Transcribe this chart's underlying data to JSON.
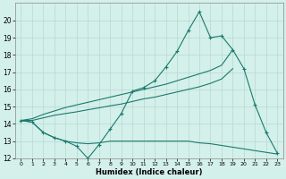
{
  "xlabel": "Humidex (Indice chaleur)",
  "x": [
    0,
    1,
    2,
    3,
    4,
    5,
    6,
    7,
    8,
    9,
    10,
    11,
    12,
    13,
    14,
    15,
    16,
    17,
    18,
    19,
    20,
    21,
    22,
    23
  ],
  "line_main": [
    14.2,
    14.1,
    13.5,
    13.2,
    13.0,
    12.7,
    12.0,
    12.8,
    13.7,
    14.6,
    15.9,
    16.1,
    16.5,
    17.3,
    18.2,
    19.4,
    20.5,
    19.0,
    19.1,
    18.3,
    17.2,
    15.1,
    13.5,
    12.3
  ],
  "line_upper": [
    14.2,
    14.3,
    14.55,
    14.75,
    14.95,
    15.1,
    15.25,
    15.4,
    15.55,
    15.7,
    15.85,
    16.0,
    16.15,
    16.3,
    16.5,
    16.7,
    16.9,
    17.1,
    17.4,
    18.3,
    null,
    null,
    null,
    null
  ],
  "line_mid": [
    14.2,
    14.2,
    14.35,
    14.5,
    14.6,
    14.7,
    14.82,
    14.93,
    15.05,
    15.15,
    15.3,
    15.45,
    15.55,
    15.7,
    15.85,
    16.0,
    16.15,
    16.35,
    16.6,
    17.2,
    null,
    null,
    null,
    null
  ],
  "line_lower": [
    14.2,
    14.1,
    13.5,
    13.2,
    13.0,
    12.9,
    12.85,
    12.9,
    13.0,
    13.0,
    13.0,
    13.0,
    13.0,
    13.0,
    13.0,
    13.0,
    12.9,
    12.85,
    12.75,
    12.65,
    12.55,
    12.45,
    12.35,
    12.25
  ],
  "ylim": [
    12,
    21
  ],
  "xlim": [
    -0.5,
    23.5
  ],
  "yticks": [
    12,
    13,
    14,
    15,
    16,
    17,
    18,
    19,
    20
  ],
  "xticks": [
    0,
    1,
    2,
    3,
    4,
    5,
    6,
    7,
    8,
    9,
    10,
    11,
    12,
    13,
    14,
    15,
    16,
    17,
    18,
    19,
    20,
    21,
    22,
    23
  ],
  "line_color": "#1a7a6e",
  "bg_color": "#d4f0ea",
  "grid_color": "#b8d8d4"
}
